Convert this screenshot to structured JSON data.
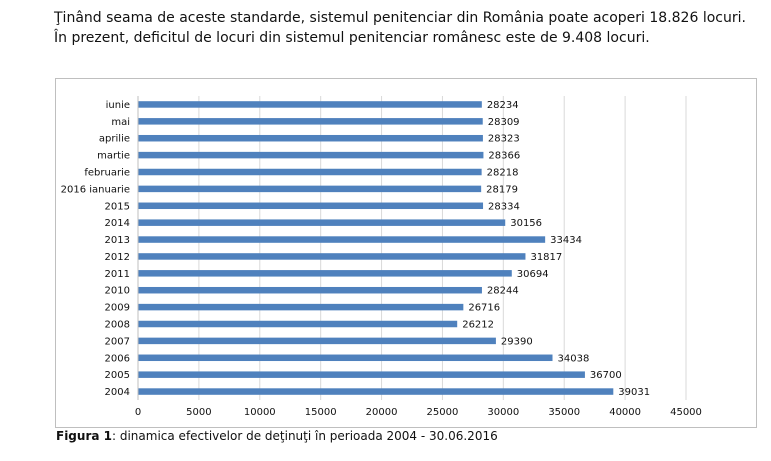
{
  "intro": {
    "line1": "Ţinând seama de aceste standarde, sistemul penitenciar din România poate acoperi 18.826 locuri.",
    "line2": "În prezent, deficitul de locuri din sistemul penitenciar românesc este de 9.408 locuri."
  },
  "caption": {
    "label": "Figura 1",
    "text": ": dinamica efectivelor de deţinuţi în perioada 2004 - 30.06.2016"
  },
  "chart_data": {
    "type": "bar",
    "orientation": "horizontal",
    "categories": [
      "iunie",
      "mai",
      "aprilie",
      "martie",
      "februarie",
      "2016 ianuarie",
      "2015",
      "2014",
      "2013",
      "2012",
      "2011",
      "2010",
      "2009",
      "2008",
      "2007",
      "2006",
      "2005",
      "2004"
    ],
    "values": [
      28234,
      28309,
      28323,
      28366,
      28218,
      28179,
      28334,
      30156,
      33434,
      31817,
      30694,
      28244,
      26716,
      26212,
      29390,
      34038,
      36700,
      39031
    ],
    "xlim": [
      0,
      45000
    ],
    "xticks": [
      0,
      5000,
      10000,
      15000,
      20000,
      25000,
      30000,
      35000,
      40000,
      45000
    ],
    "grid": true,
    "bar_color": "#4f81bd",
    "grid_color": "#d9d9d9"
  }
}
